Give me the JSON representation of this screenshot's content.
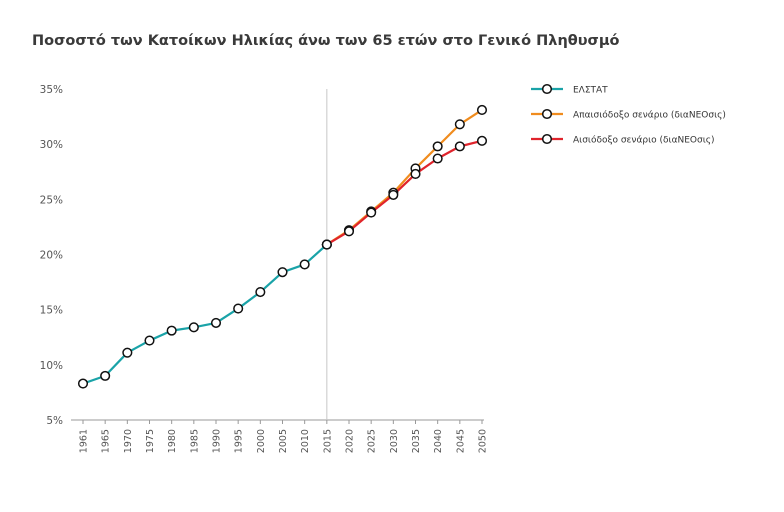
{
  "chart_data": {
    "type": "line",
    "title": "Ποσοστό των Κατοίκων Ηλικίας άνω των 65 ετών στο Γενικό Πληθυσμό",
    "xlabel": "",
    "ylabel": "",
    "ylim": [
      5,
      35
    ],
    "yticks": [
      5,
      10,
      15,
      20,
      25,
      30,
      35
    ],
    "ytick_labels": [
      "5%",
      "10%",
      "15%",
      "20%",
      "25%",
      "30%",
      "35%"
    ],
    "categories": [
      "1961",
      "1965",
      "1970",
      "1975",
      "1980",
      "1985",
      "1990",
      "1995",
      "2000",
      "2005",
      "2010",
      "2015",
      "2020",
      "2025",
      "2030",
      "2035",
      "2040",
      "2045",
      "2050"
    ],
    "vertical_line_at": "2015",
    "legend_position": "top-right",
    "series": [
      {
        "name": "ΕΛΣΤΑΤ",
        "color": "#1aa3a8",
        "x": [
          "1961",
          "1965",
          "1970",
          "1975",
          "1980",
          "1985",
          "1990",
          "1995",
          "2000",
          "2005",
          "2010",
          "2015"
        ],
        "values": [
          8.3,
          9.0,
          11.1,
          12.2,
          13.1,
          13.4,
          13.8,
          15.1,
          16.6,
          18.4,
          19.1,
          20.9
        ]
      },
      {
        "name": "Απαισιόδοξο σενάριο (διαΝΕΟσις)",
        "color": "#f08c1e",
        "x": [
          "2015",
          "2020",
          "2025",
          "2030",
          "2035",
          "2040",
          "2045",
          "2050"
        ],
        "values": [
          20.9,
          22.2,
          23.9,
          25.6,
          27.8,
          29.8,
          31.8,
          33.1
        ]
      },
      {
        "name": "Αισιόδοξο σενάριο (διαΝΕΟσις)",
        "color": "#e0242c",
        "x": [
          "2015",
          "2020",
          "2025",
          "2030",
          "2035",
          "2040",
          "2045",
          "2050"
        ],
        "values": [
          20.9,
          22.1,
          23.8,
          25.4,
          27.3,
          28.7,
          29.8,
          30.3
        ]
      }
    ]
  }
}
